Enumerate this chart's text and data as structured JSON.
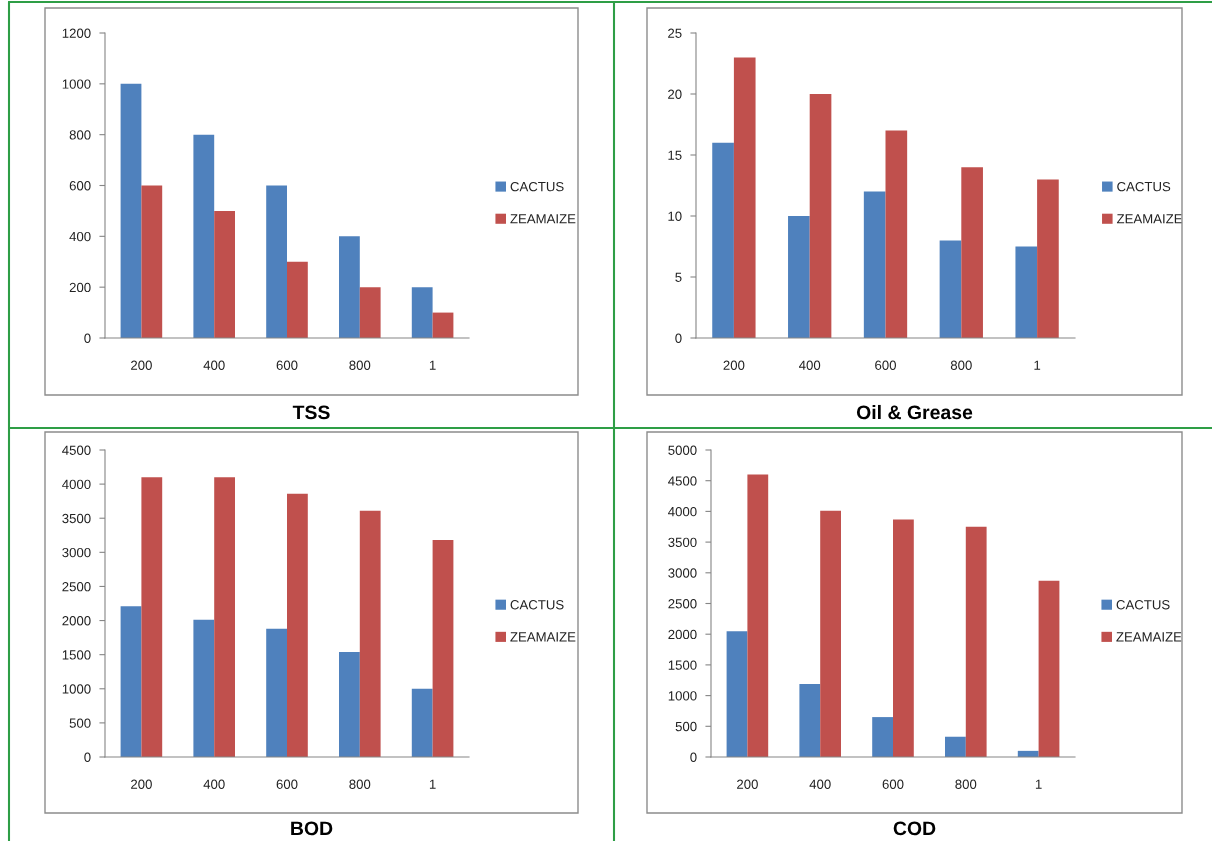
{
  "chart_data": [
    {
      "type": "bar",
      "title": "TSS",
      "categories": [
        "200",
        "400",
        "600",
        "800",
        "1"
      ],
      "series": [
        {
          "name": "CACTUS",
          "color": "#4f81bd",
          "values": [
            1000,
            800,
            600,
            400,
            200
          ]
        },
        {
          "name": "ZEAMAIZE",
          "color": "#c0504d",
          "values": [
            600,
            500,
            300,
            200,
            100
          ]
        }
      ],
      "ylim": [
        0,
        1200
      ],
      "yticks": [
        0,
        200,
        400,
        600,
        800,
        1000,
        1200
      ],
      "legend": "right"
    },
    {
      "type": "bar",
      "title": "Oil & Grease",
      "categories": [
        "200",
        "400",
        "600",
        "800",
        "1"
      ],
      "series": [
        {
          "name": "CACTUS",
          "color": "#4f81bd",
          "values": [
            16,
            10,
            12,
            8,
            7.5
          ]
        },
        {
          "name": "ZEAMAIZE",
          "color": "#c0504d",
          "values": [
            23,
            20,
            17,
            14,
            13
          ]
        }
      ],
      "ylim": [
        0,
        25
      ],
      "yticks": [
        0,
        5,
        10,
        15,
        20,
        25
      ],
      "legend": "right"
    },
    {
      "type": "bar",
      "title": "BOD",
      "categories": [
        "200",
        "400",
        "600",
        "800",
        "1"
      ],
      "series": [
        {
          "name": "CACTUS",
          "color": "#4f81bd",
          "values": [
            2210,
            2010,
            1880,
            1540,
            1000
          ]
        },
        {
          "name": "ZEAMAIZE",
          "color": "#c0504d",
          "values": [
            4100,
            4100,
            3860,
            3610,
            3180
          ]
        }
      ],
      "ylim": [
        0,
        4500
      ],
      "yticks": [
        0,
        500,
        1000,
        1500,
        2000,
        2500,
        3000,
        3500,
        4000,
        4500
      ],
      "legend": "right"
    },
    {
      "type": "bar",
      "title": "COD",
      "categories": [
        "200",
        "400",
        "600",
        "800",
        "1"
      ],
      "series": [
        {
          "name": "CACTUS",
          "color": "#4f81bd",
          "values": [
            2050,
            1190,
            650,
            330,
            100
          ]
        },
        {
          "name": "ZEAMAIZE",
          "color": "#c0504d",
          "values": [
            4600,
            4010,
            3870,
            3750,
            2870
          ]
        }
      ],
      "ylim": [
        0,
        5000
      ],
      "yticks": [
        0,
        500,
        1000,
        1500,
        2000,
        2500,
        3000,
        3500,
        4000,
        4500,
        5000
      ],
      "legend": "right"
    }
  ]
}
